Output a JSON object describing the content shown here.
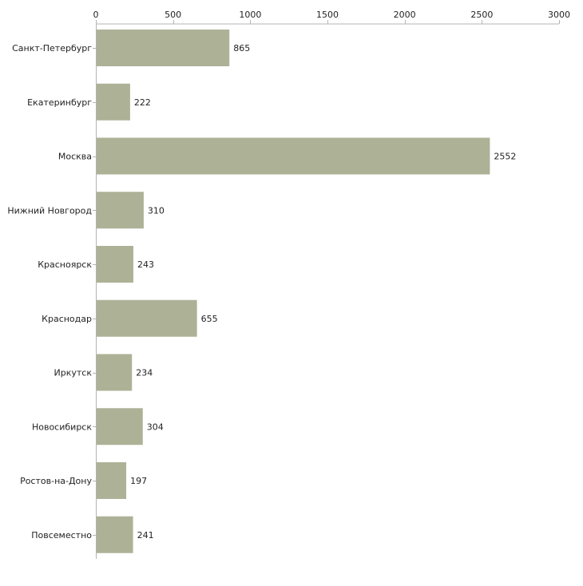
{
  "chart_data": {
    "type": "bar",
    "orientation": "horizontal",
    "title": "",
    "xlabel": "",
    "ylabel": "",
    "xlim": [
      0,
      3000
    ],
    "x_ticks": [
      0,
      500,
      1000,
      1500,
      2000,
      2500,
      3000
    ],
    "x_tick_labels": [
      "0",
      "500",
      "1000",
      "1500",
      "2000",
      "2500",
      "3000"
    ],
    "x_axis_position": "top",
    "grid": false,
    "legend": "none",
    "categories": [
      "Санкт-Петербург",
      "Екатеринбург",
      "Москва",
      "Нижний Новгород",
      "Красноярск",
      "Краснодар",
      "Иркутск",
      "Новосибирск",
      "Ростов-на-Дону",
      "Повсеместно"
    ],
    "values": [
      865,
      222,
      2552,
      310,
      243,
      655,
      234,
      304,
      197,
      241
    ],
    "value_labels": [
      "865",
      "222",
      "2552",
      "310",
      "243",
      "655",
      "234",
      "304",
      "197",
      "241"
    ]
  },
  "colors": {
    "bar": "#adb297",
    "axis": "#b4b4b4",
    "text": "#222222"
  }
}
